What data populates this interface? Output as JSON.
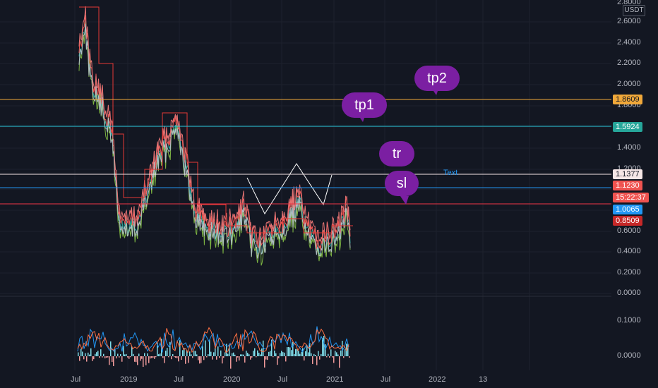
{
  "price_axis": {
    "currency": "USDT",
    "ticks": [
      "2.8000",
      "2.6000",
      "2.4000",
      "2.2000",
      "2.0000",
      "1.8000",
      "1.4000",
      "1.2000",
      "0.6000",
      "0.4000",
      "0.2000",
      "0.0000"
    ],
    "badges": [
      {
        "label": "1.8609",
        "color": "#f0a83a",
        "text_color": "#131722"
      },
      {
        "label": "1.5924",
        "color": "#26a69a",
        "text_color": "#ffffff"
      },
      {
        "label": "1.1377",
        "color": "#f5e6e6",
        "text_color": "#131722"
      },
      {
        "label": "1.1230",
        "color": "#ef5350",
        "text_color": "#ffffff"
      },
      {
        "label": "15:22:37",
        "color": "#ef5350",
        "text_color": "#ffffff"
      },
      {
        "label": "1.0065",
        "color": "#2196f3",
        "text_color": "#ffffff"
      },
      {
        "label": "0.8509",
        "color": "#c62828",
        "text_color": "#ffffff"
      }
    ]
  },
  "indicator_axis": {
    "ticks": [
      "0.0000",
      "0.1000",
      "0.0000"
    ]
  },
  "time_axis": {
    "labels": [
      "Jul",
      "2019",
      "Jul",
      "2020",
      "Jul",
      "2021",
      "Jul",
      "2022",
      "13"
    ]
  },
  "annotations": {
    "tp2": "tp2",
    "tp1": "tp1",
    "tr": "tr",
    "sl": "sl",
    "text": "Text"
  },
  "colors": {
    "background": "#131722",
    "grid": "#1e222d",
    "tp2_line": "#f0a83a",
    "tp1_line": "#26c6da",
    "entry_line": "#f5e6e6",
    "level_blue": "#2196f3",
    "sl_line": "#f23645",
    "price_green": "#4caf50",
    "price_red": "#ef5350",
    "bubble": "#7b1fa2"
  }
}
